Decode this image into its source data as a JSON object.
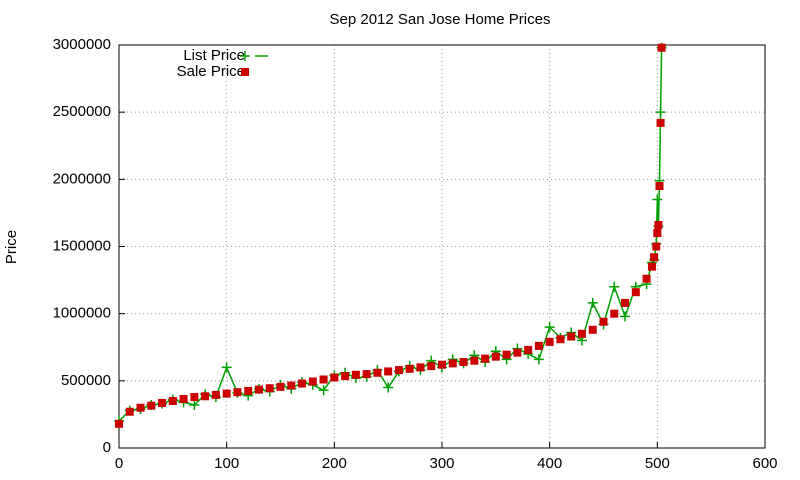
{
  "chart_data": {
    "type": "line",
    "title": "Sep 2012 San Jose Home Prices",
    "ylabel": "Price",
    "x": [
      0,
      10,
      20,
      30,
      40,
      50,
      60,
      70,
      80,
      90,
      100,
      110,
      120,
      130,
      140,
      150,
      160,
      170,
      180,
      190,
      200,
      210,
      220,
      230,
      240,
      250,
      260,
      270,
      280,
      290,
      300,
      310,
      320,
      330,
      340,
      350,
      360,
      370,
      380,
      390,
      400,
      410,
      420,
      430,
      440,
      450,
      460,
      470,
      480,
      490,
      495,
      497,
      499,
      500,
      501,
      502,
      503,
      504
    ],
    "series": [
      {
        "name": "List Price",
        "color": "#00a000",
        "style": "linespoints",
        "values": [
          200000,
          280000,
          290000,
          320000,
          330000,
          360000,
          340000,
          320000,
          400000,
          380000,
          600000,
          410000,
          390000,
          440000,
          420000,
          470000,
          440000,
          490000,
          470000,
          430000,
          540000,
          560000,
          520000,
          530000,
          580000,
          450000,
          570000,
          610000,
          580000,
          650000,
          600000,
          660000,
          630000,
          690000,
          640000,
          720000,
          660000,
          740000,
          700000,
          660000,
          900000,
          820000,
          860000,
          800000,
          1080000,
          920000,
          1200000,
          980000,
          1200000,
          1220000,
          1380000,
          1400000,
          1520000,
          1850000,
          1650000,
          1990000,
          2500000,
          2980000
        ]
      },
      {
        "name": "Sale Price",
        "color": "#cc0000",
        "style": "points",
        "values": [
          180000,
          270000,
          300000,
          315000,
          335000,
          350000,
          365000,
          380000,
          385000,
          395000,
          405000,
          415000,
          425000,
          435000,
          445000,
          455000,
          465000,
          480000,
          495000,
          510000,
          525000,
          535000,
          545000,
          550000,
          560000,
          570000,
          580000,
          590000,
          600000,
          610000,
          620000,
          630000,
          640000,
          650000,
          665000,
          680000,
          695000,
          710000,
          730000,
          760000,
          790000,
          810000,
          830000,
          850000,
          880000,
          940000,
          1000000,
          1080000,
          1160000,
          1260000,
          1350000,
          1420000,
          1500000,
          1600000,
          1660000,
          1950000,
          2420000,
          2980000
        ]
      }
    ],
    "xlim": [
      0,
      600
    ],
    "xticks": [
      0,
      100,
      200,
      300,
      400,
      500,
      600
    ],
    "ylim": [
      0,
      3000000
    ],
    "yticks": [
      0,
      500000,
      1000000,
      1500000,
      2000000,
      2500000,
      3000000
    ],
    "grid": true,
    "legend": "top-left"
  }
}
